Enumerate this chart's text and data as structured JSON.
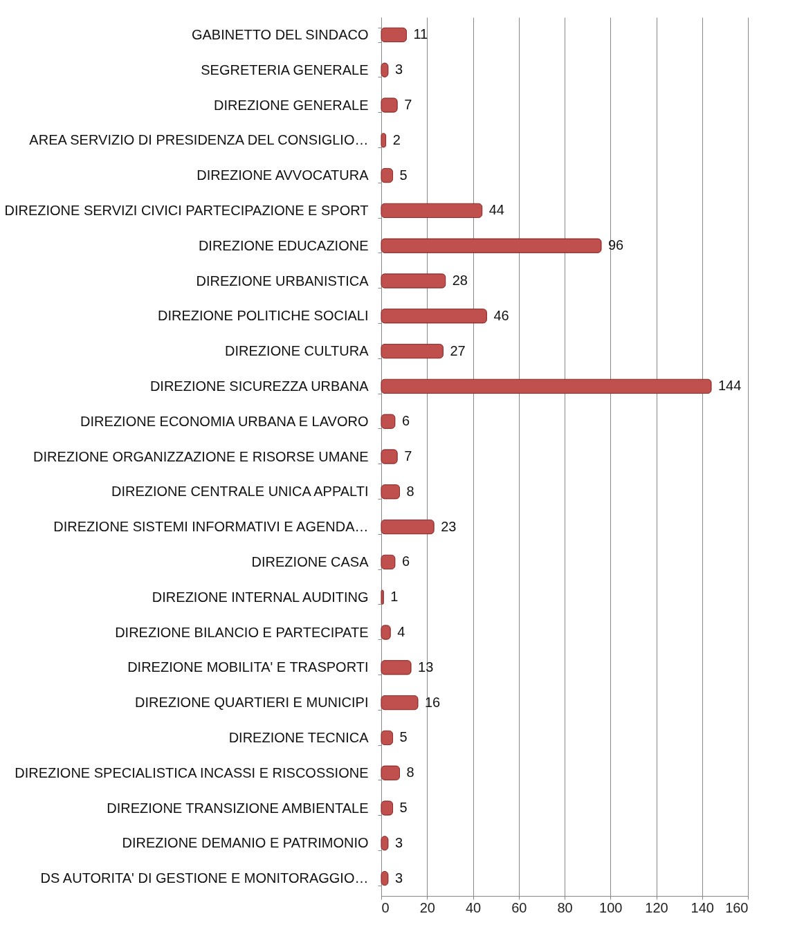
{
  "chart_data": {
    "type": "bar",
    "orientation": "horizontal",
    "categories": [
      "GABINETTO DEL SINDACO",
      "SEGRETERIA GENERALE",
      "DIREZIONE GENERALE",
      "AREA SERVIZIO DI PRESIDENZA DEL CONSIGLIO…",
      "DIREZIONE AVVOCATURA",
      "DIREZIONE SERVIZI CIVICI PARTECIPAZIONE E SPORT",
      "DIREZIONE EDUCAZIONE",
      "DIREZIONE URBANISTICA",
      "DIREZIONE POLITICHE SOCIALI",
      "DIREZIONE CULTURA",
      "DIREZIONE SICUREZZA URBANA",
      "DIREZIONE ECONOMIA URBANA E LAVORO",
      "DIREZIONE ORGANIZZAZIONE E RISORSE UMANE",
      "DIREZIONE CENTRALE UNICA APPALTI",
      "DIREZIONE SISTEMI INFORMATIVI E AGENDA…",
      "DIREZIONE CASA",
      "DIREZIONE INTERNAL AUDITING",
      "DIREZIONE BILANCIO E PARTECIPATE",
      "DIREZIONE MOBILITA' E TRASPORTI",
      "DIREZIONE QUARTIERI E MUNICIPI",
      "DIREZIONE TECNICA",
      "DIREZIONE SPECIALISTICA INCASSI E RISCOSSIONE",
      "DIREZIONE TRANSIZIONE AMBIENTALE",
      "DIREZIONE DEMANIO E PATRIMONIO",
      "DS AUTORITA' DI GESTIONE E MONITORAGGIO…"
    ],
    "values": [
      11,
      3,
      7,
      2,
      5,
      44,
      96,
      28,
      46,
      27,
      144,
      6,
      7,
      8,
      23,
      6,
      1,
      4,
      13,
      16,
      5,
      8,
      5,
      3,
      3
    ],
    "color": "#c0504d",
    "xlim": [
      0,
      160
    ],
    "xticks": [
      0,
      20,
      40,
      60,
      80,
      100,
      120,
      140,
      160
    ],
    "grid": "x",
    "data_labels": true
  }
}
